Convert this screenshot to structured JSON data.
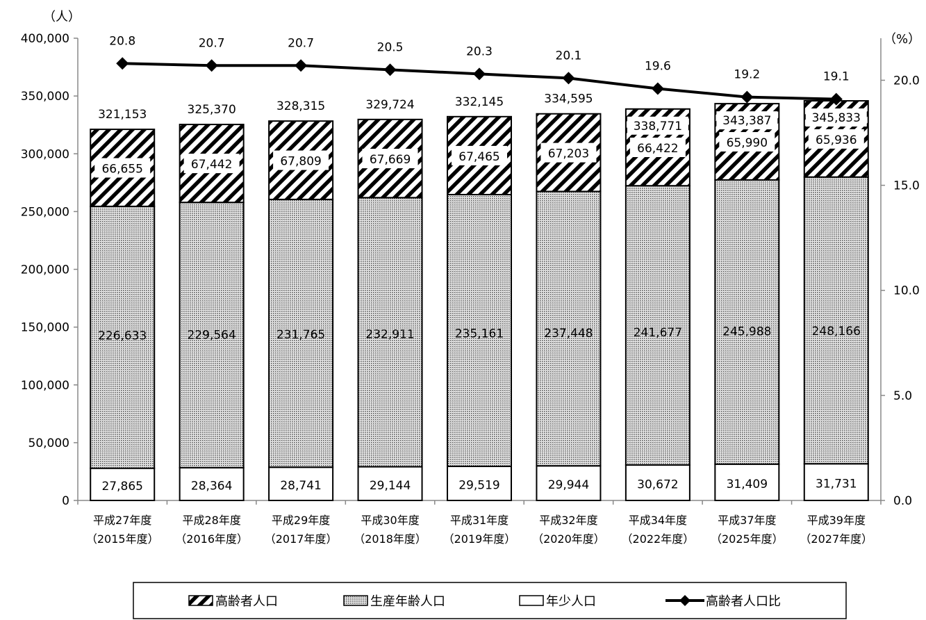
{
  "chart_data": {
    "type": "bar",
    "stacked": true,
    "categories": [
      [
        "平成27年度",
        "（2015年度）"
      ],
      [
        "平成28年度",
        "（2016年度）"
      ],
      [
        "平成29年度",
        "（2017年度）"
      ],
      [
        "平成30年度",
        "（2018年度）"
      ],
      [
        "平成31年度",
        "（2019年度）"
      ],
      [
        "平成32年度",
        "（2020年度）"
      ],
      [
        "平成34年度",
        "（2022年度）"
      ],
      [
        "平成37年度",
        "（2025年度）"
      ],
      [
        "平成39年度",
        "（2027年度）"
      ]
    ],
    "series": [
      {
        "name": "年少人口",
        "values": [
          27865,
          28364,
          28741,
          29144,
          29519,
          29944,
          30672,
          31409,
          31731
        ],
        "labels": [
          "27,865",
          "28,364",
          "28,741",
          "29,144",
          "29,519",
          "29,944",
          "30,672",
          "31,409",
          "31,731"
        ],
        "pattern": "none"
      },
      {
        "name": "生産年齢人口",
        "values": [
          226633,
          229564,
          231765,
          232911,
          235161,
          237448,
          241677,
          245988,
          248166
        ],
        "labels": [
          "226,633",
          "229,564",
          "231,765",
          "232,911",
          "235,161",
          "237,448",
          "241,677",
          "245,988",
          "248,166"
        ],
        "pattern": "dots"
      },
      {
        "name": "高齢者人口",
        "values": [
          66655,
          67442,
          67809,
          67669,
          67465,
          67203,
          66422,
          65990,
          65936
        ],
        "labels": [
          "66,655",
          "67,442",
          "67,809",
          "67,669",
          "67,465",
          "67,203",
          "66,422",
          "65,990",
          "65,936"
        ],
        "pattern": "hatch"
      }
    ],
    "totals": [
      321153,
      325370,
      328315,
      329724,
      332145,
      334595,
      338771,
      343387,
      345833
    ],
    "total_labels": [
      "321,153",
      "325,370",
      "328,315",
      "329,724",
      "332,145",
      "334,595",
      "338,771",
      "343,387",
      "345,833"
    ],
    "line": {
      "name": "高齢者人口比",
      "values": [
        20.8,
        20.7,
        20.7,
        20.5,
        20.3,
        20.1,
        19.6,
        19.2,
        19.1
      ],
      "labels": [
        "20.8",
        "20.7",
        "20.7",
        "20.5",
        "20.3",
        "20.1",
        "19.6",
        "19.2",
        "19.1"
      ]
    },
    "y_left": {
      "unit": "（人）",
      "min": 0,
      "max": 400000,
      "ticks": [
        "0",
        "50,000",
        "100,000",
        "150,000",
        "200,000",
        "250,000",
        "300,000",
        "350,000",
        "400,000"
      ]
    },
    "y_right": {
      "unit": "（%）",
      "min": 0,
      "max": 22,
      "ticks": [
        "0.0",
        "5.0",
        "10.0",
        "15.0",
        "20.0"
      ]
    },
    "legend": {
      "placement": "bottom",
      "items": [
        "高齢者人口",
        "生産年齢人口",
        "年少人口",
        "高齢者人口比"
      ]
    },
    "colors": {
      "line": "#000000",
      "bar_border": "#000000",
      "background": "#ffffff"
    }
  }
}
